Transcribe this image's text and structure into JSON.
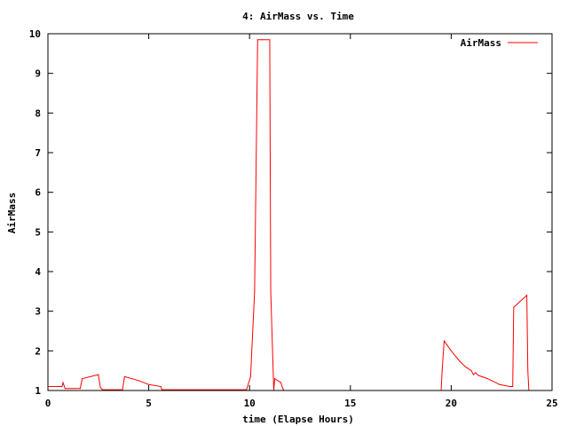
{
  "chart_data": {
    "type": "line",
    "title": "4: AirMass vs. Time",
    "xlabel": "time (Elapse Hours)",
    "ylabel": "AirMass",
    "xlim": [
      0,
      25
    ],
    "ylim": [
      1,
      10
    ],
    "xticks": [
      0,
      5,
      10,
      15,
      20,
      25
    ],
    "yticks": [
      1,
      2,
      3,
      4,
      5,
      6,
      7,
      8,
      9,
      10
    ],
    "xtick_labels": [
      "0",
      "5",
      "10",
      "15",
      "20",
      "25"
    ],
    "ytick_labels": [
      "1",
      "2",
      "3",
      "4",
      "5",
      "6",
      "7",
      "8",
      "9",
      "10"
    ],
    "grid": false,
    "legend_position": "top-right",
    "series": [
      {
        "name": "AirMass",
        "color": "#ff0000",
        "x": [
          0,
          0.7,
          0.75,
          0.85,
          1.6,
          1.7,
          2.5,
          2.6,
          2.7,
          3.7,
          3.8,
          4.5,
          5.0,
          5.6,
          5.65,
          9.85,
          10.05,
          10.25,
          10.4,
          10.6,
          10.65,
          11.0,
          11.05,
          11.2,
          11.25,
          11.55,
          11.65,
          11.7,
          18.6,
          19.5,
          19.55,
          19.65,
          20.0,
          20.4,
          20.7,
          21.0,
          21.1,
          21.2,
          21.35,
          21.8,
          22.4,
          22.9,
          23.05,
          23.1,
          23.75,
          23.8,
          23.85
        ],
        "y": [
          1.1,
          1.1,
          1.2,
          1.05,
          1.05,
          1.3,
          1.4,
          1.08,
          1.02,
          1.02,
          1.35,
          1.25,
          1.15,
          1.1,
          1.02,
          1.02,
          1.35,
          3.5,
          9.85,
          9.85,
          9.85,
          9.85,
          3.5,
          1.0,
          1.3,
          1.2,
          1.05,
          1.0,
          1.0,
          1.0,
          1.5,
          2.25,
          2.0,
          1.75,
          1.6,
          1.5,
          1.4,
          1.45,
          1.38,
          1.3,
          1.15,
          1.1,
          1.1,
          3.1,
          3.4,
          1.5,
          1.0
        ]
      }
    ]
  }
}
